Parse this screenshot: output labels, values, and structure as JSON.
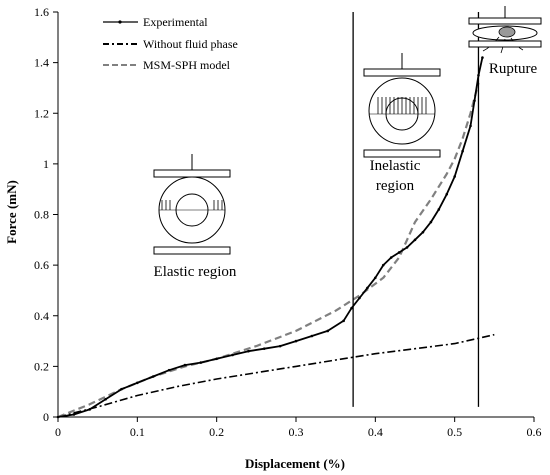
{
  "chart_data": {
    "type": "line",
    "xlabel": "Displacement (%)",
    "ylabel": "Force (mN)",
    "xlim": [
      0,
      0.6
    ],
    "ylim": [
      0,
      1.6
    ],
    "x_ticks": [
      0,
      0.1,
      0.2,
      0.3,
      0.4,
      0.5,
      0.6
    ],
    "y_ticks": [
      0,
      0.2,
      0.4,
      0.6,
      0.8,
      1,
      1.2,
      1.4,
      1.6
    ],
    "grid": false,
    "legend_position": "top-left",
    "series": [
      {
        "name": "Experimental",
        "color": "#000000",
        "style": "solid-with-markers",
        "x": [
          0,
          0.02,
          0.04,
          0.06,
          0.08,
          0.1,
          0.12,
          0.14,
          0.16,
          0.18,
          0.2,
          0.22,
          0.24,
          0.26,
          0.28,
          0.3,
          0.32,
          0.34,
          0.36,
          0.37,
          0.38,
          0.39,
          0.4,
          0.41,
          0.42,
          0.43,
          0.44,
          0.45,
          0.46,
          0.47,
          0.48,
          0.49,
          0.5,
          0.51,
          0.52,
          0.525,
          0.53,
          0.535
        ],
        "y": [
          0,
          0.01,
          0.03,
          0.07,
          0.11,
          0.135,
          0.16,
          0.185,
          0.205,
          0.215,
          0.23,
          0.245,
          0.26,
          0.27,
          0.28,
          0.3,
          0.32,
          0.34,
          0.38,
          0.43,
          0.47,
          0.51,
          0.55,
          0.6,
          0.63,
          0.65,
          0.67,
          0.7,
          0.73,
          0.77,
          0.82,
          0.88,
          0.95,
          1.05,
          1.15,
          1.25,
          1.35,
          1.42
        ]
      },
      {
        "name": "Without fluid phase",
        "color": "#000000",
        "style": "dash-dot",
        "x": [
          0,
          0.05,
          0.1,
          0.15,
          0.2,
          0.25,
          0.3,
          0.35,
          0.4,
          0.45,
          0.5,
          0.55
        ],
        "y": [
          0,
          0.04,
          0.085,
          0.12,
          0.15,
          0.175,
          0.2,
          0.225,
          0.25,
          0.27,
          0.29,
          0.325
        ]
      },
      {
        "name": "MSM-SPH model",
        "color": "#808080",
        "style": "dashed",
        "x": [
          0,
          0.04,
          0.08,
          0.12,
          0.16,
          0.2,
          0.25,
          0.3,
          0.35,
          0.38,
          0.41,
          0.43,
          0.44,
          0.45,
          0.47,
          0.49,
          0.5,
          0.51,
          0.52,
          0.53
        ],
        "y": [
          0,
          0.05,
          0.11,
          0.16,
          0.2,
          0.23,
          0.28,
          0.34,
          0.42,
          0.48,
          0.55,
          0.63,
          0.7,
          0.77,
          0.86,
          0.96,
          1.02,
          1.1,
          1.2,
          1.32
        ]
      }
    ],
    "vertical_lines": [
      0.372,
      0.53
    ],
    "annotations": {
      "elastic": "Elastic region",
      "inelastic_line1": "Inelastic",
      "inelastic_line2": "region",
      "rupture": "Rupture"
    }
  }
}
